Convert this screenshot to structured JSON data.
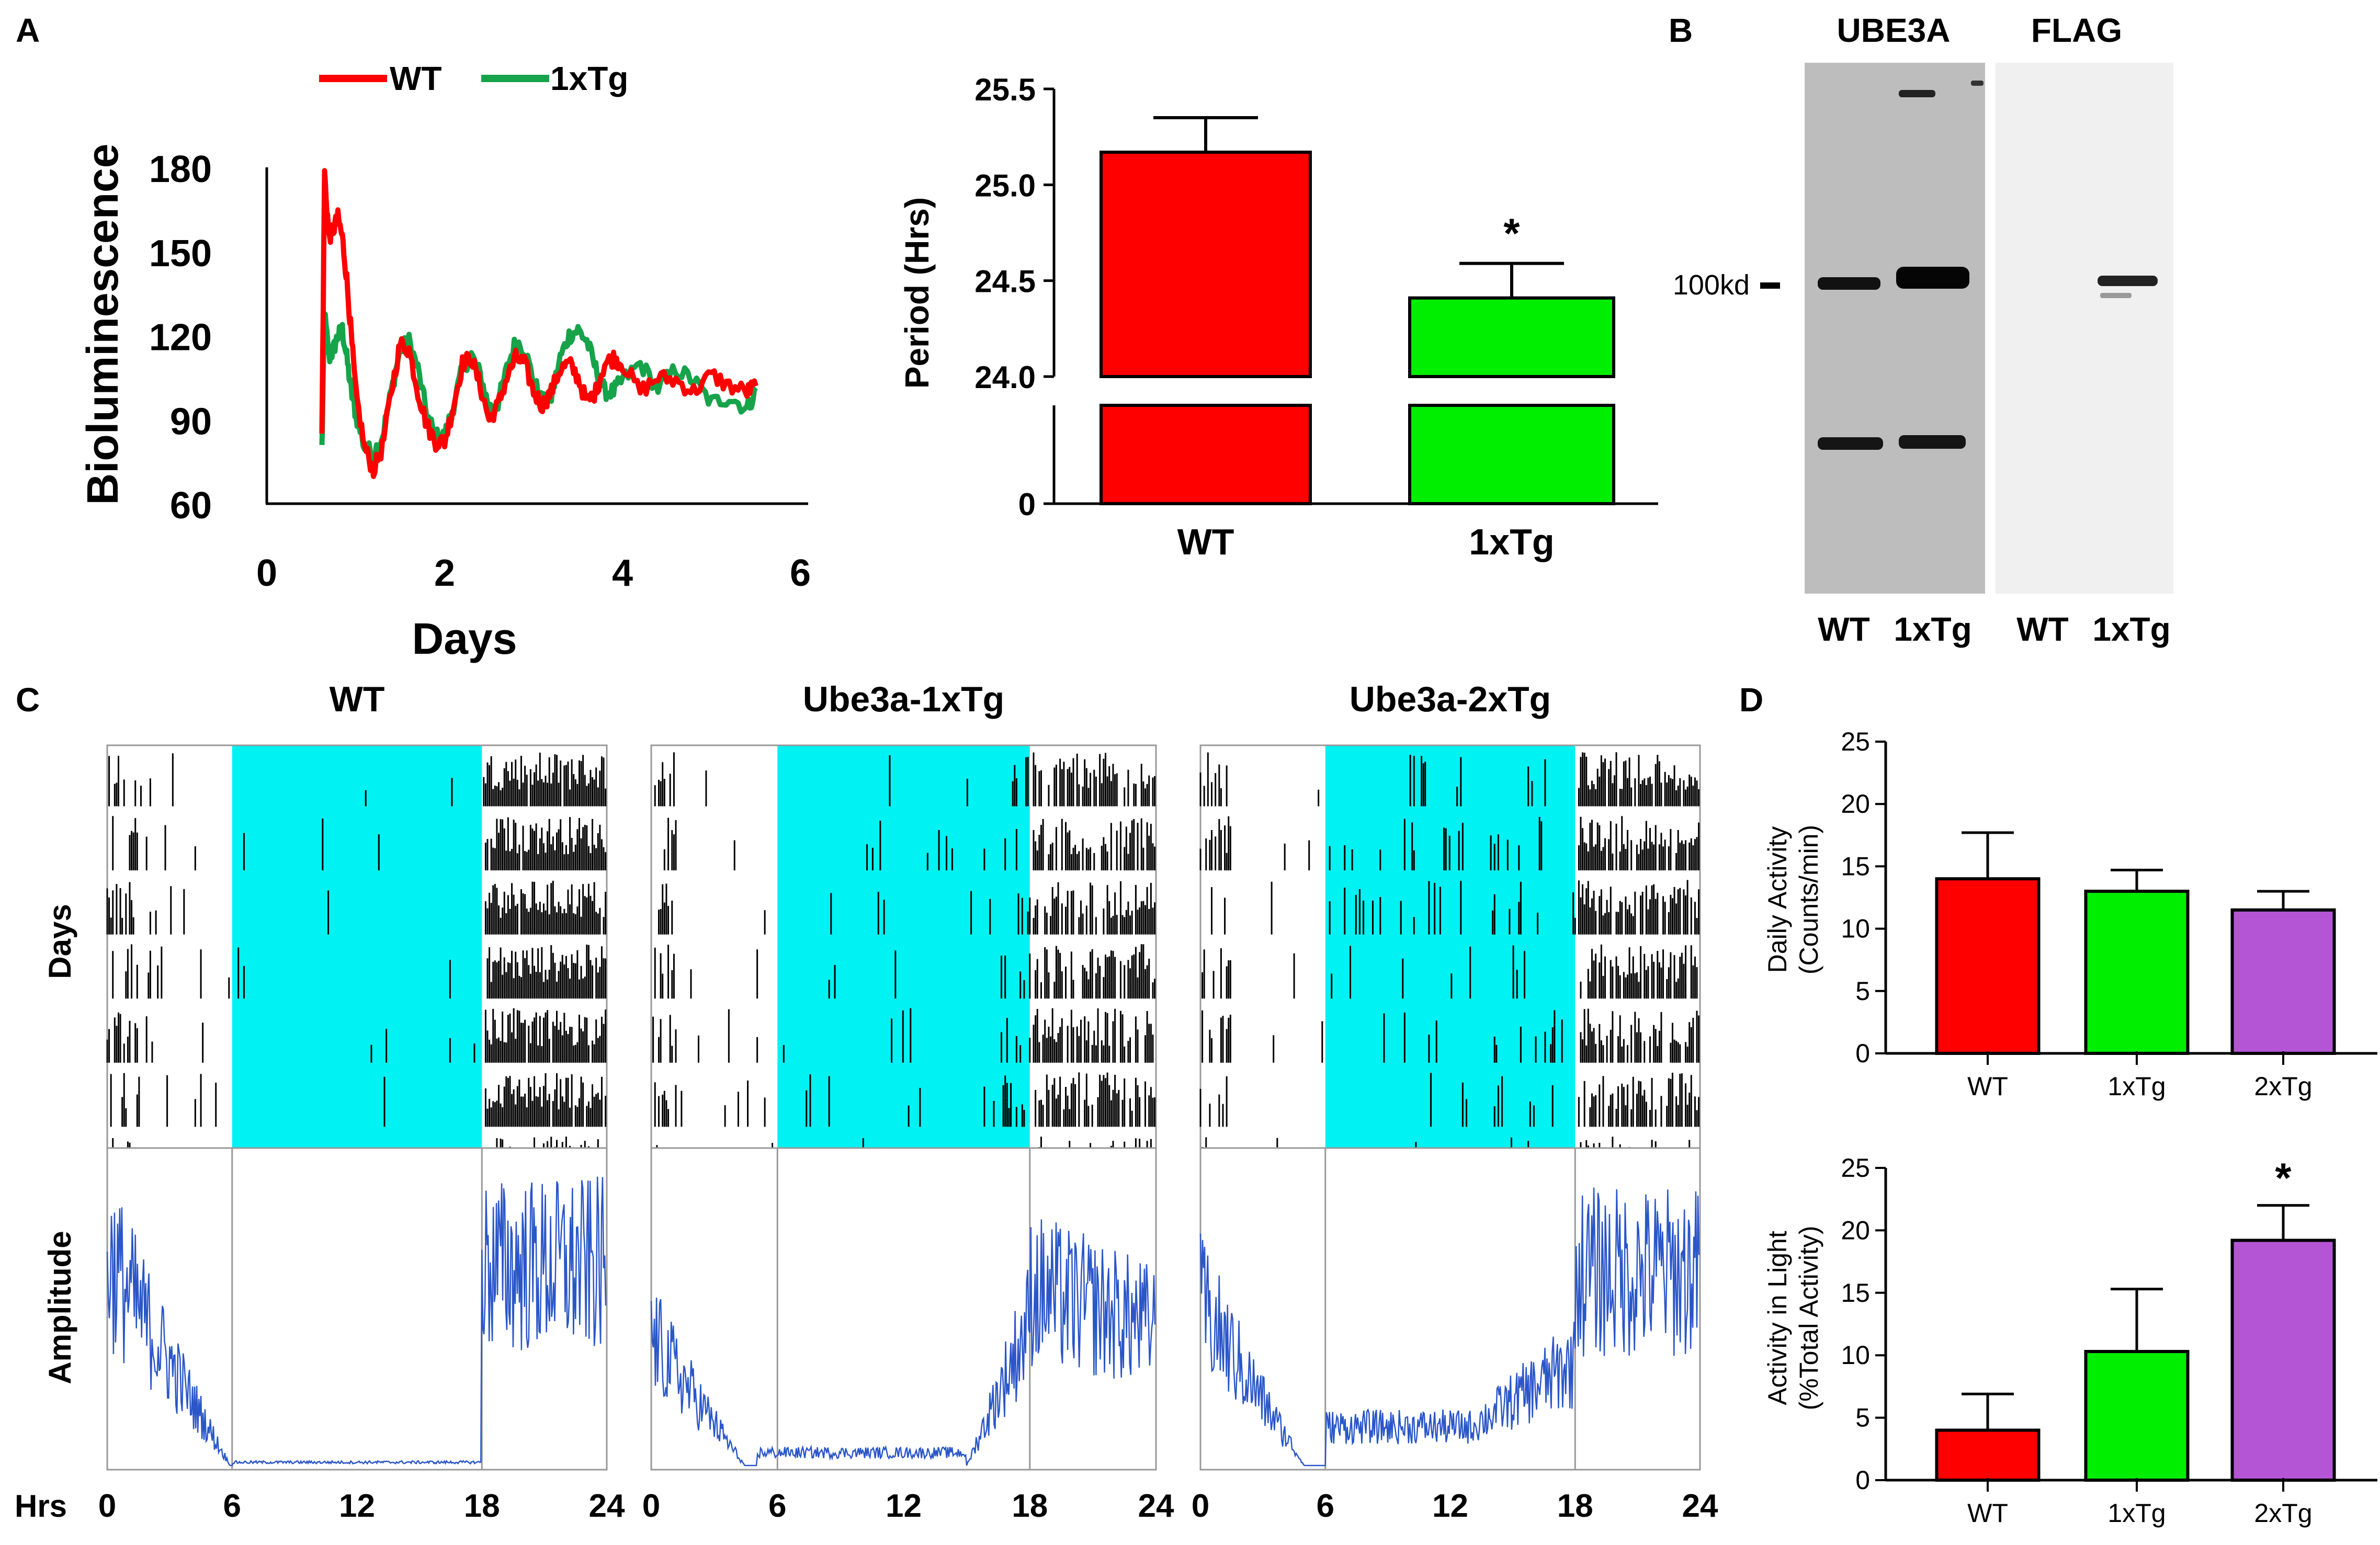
{
  "panel_labels": {
    "a": "A",
    "b": "B",
    "c": "C",
    "d": "D"
  },
  "colors": {
    "wt": "#ff0000",
    "tg1": "#00ee00",
    "tg1_line": "#16a34a",
    "tg2": "#b455d6",
    "dark_phase": "#00f2f2",
    "amplitude_trace": "#2a56c8",
    "axis": "#000000"
  },
  "chart_data": [
    {
      "id": "A1",
      "type": "line",
      "title": "",
      "xlabel": "Days",
      "ylabel": "Bioluminescence",
      "xlim": [
        0,
        6
      ],
      "ylim": [
        60,
        180
      ],
      "xticks": [
        "0",
        "2",
        "4",
        "6"
      ],
      "yticks": [
        "60",
        "90",
        "120",
        "150",
        "180"
      ],
      "legend": {
        "placement": "top",
        "entries": [
          "WT",
          "1xTg"
        ]
      },
      "series": [
        {
          "name": "WT",
          "color_key": "wt",
          "x": [
            0.62,
            0.65,
            0.7,
            0.75,
            0.8,
            0.85,
            0.9,
            0.95,
            1.0,
            1.1,
            1.2,
            1.3,
            1.4,
            1.5,
            1.6,
            1.7,
            1.8,
            1.9,
            2.0,
            2.1,
            2.2,
            2.3,
            2.4,
            2.5,
            2.6,
            2.7,
            2.8,
            2.9,
            3.0,
            3.1,
            3.2,
            3.3,
            3.4,
            3.5,
            3.6,
            3.7,
            3.8,
            3.9,
            4.0,
            4.2,
            4.4,
            4.6,
            4.8,
            5.0,
            5.2,
            5.4,
            5.5
          ],
          "y": [
            85,
            178,
            155,
            158,
            162,
            155,
            140,
            120,
            100,
            80,
            72,
            80,
            100,
            117,
            115,
            100,
            88,
            82,
            82,
            95,
            110,
            112,
            102,
            90,
            95,
            105,
            112,
            110,
            100,
            95,
            100,
            108,
            110,
            105,
            96,
            100,
            110,
            112,
            110,
            100,
            105,
            104,
            100,
            106,
            102,
            100,
            102
          ]
        },
        {
          "name": "1xTg",
          "color_key": "tg1_line",
          "x": [
            0.62,
            0.65,
            0.7,
            0.75,
            0.8,
            0.85,
            0.9,
            0.95,
            1.0,
            1.1,
            1.2,
            1.3,
            1.4,
            1.5,
            1.6,
            1.7,
            1.8,
            1.9,
            2.0,
            2.1,
            2.2,
            2.3,
            2.4,
            2.5,
            2.6,
            2.7,
            2.8,
            2.9,
            3.0,
            3.1,
            3.2,
            3.3,
            3.4,
            3.5,
            3.6,
            3.7,
            3.8,
            3.9,
            4.0,
            4.2,
            4.4,
            4.6,
            4.8,
            5.0,
            5.2,
            5.4,
            5.5
          ],
          "y": [
            80,
            128,
            112,
            115,
            120,
            122,
            112,
            100,
            92,
            80,
            78,
            84,
            100,
            115,
            118,
            108,
            92,
            84,
            84,
            95,
            108,
            113,
            106,
            94,
            96,
            108,
            118,
            115,
            104,
            96,
            98,
            112,
            120,
            122,
            118,
            108,
            100,
            100,
            104,
            110,
            101,
            108,
            104,
            96,
            98,
            94,
            100
          ]
        }
      ]
    },
    {
      "id": "A2",
      "type": "bar",
      "ylabel": "Period (Hrs)",
      "categories": [
        "WT",
        "1xTg"
      ],
      "values": [
        25.17,
        24.41
      ],
      "errors": [
        0.18,
        0.18
      ],
      "upper_ylim": [
        24.0,
        25.5
      ],
      "yticks": [
        "24.0",
        "24.5",
        "25.0",
        "25.5"
      ],
      "broken_axis_lower_tick": "0",
      "annotations": [
        {
          "category": "1xTg",
          "text": "*"
        }
      ]
    },
    {
      "id": "C",
      "type": "heatmap",
      "description": "actogram",
      "row_label": "Days",
      "amplitude_label": "Amplitude",
      "x_axis_prefix": "Hrs",
      "xticks": [
        "0",
        "6",
        "12",
        "18",
        "24"
      ],
      "dark_phase_hours": [
        6,
        18
      ],
      "panels": [
        {
          "title": "WT",
          "n_days": 7,
          "label_x_prefix": true
        },
        {
          "title": "Ube3a-1xTg",
          "n_days": 7,
          "label_x_prefix": false
        },
        {
          "title": "Ube3a-2xTg",
          "n_days": 7,
          "label_x_prefix": false
        }
      ]
    },
    {
      "id": "D1",
      "type": "bar",
      "ylabel_line1": "Daily Activity",
      "ylabel_line2": "(Counts/min)",
      "categories": [
        "WT",
        "1xTg",
        "2xTg"
      ],
      "values": [
        14.0,
        13.0,
        11.5
      ],
      "errors": [
        3.7,
        1.7,
        1.5
      ],
      "ylim": [
        0,
        25
      ],
      "yticks": [
        "0",
        "5",
        "10",
        "15",
        "20",
        "25"
      ]
    },
    {
      "id": "D2",
      "type": "bar",
      "ylabel_line1": "Activity in Light",
      "ylabel_line2": "(%Total Activity)",
      "categories": [
        "WT",
        "1xTg",
        "2xTg"
      ],
      "values": [
        4.0,
        10.3,
        19.2
      ],
      "errors": [
        2.9,
        5.0,
        2.8
      ],
      "ylim": [
        0,
        25
      ],
      "yticks": [
        "0",
        "5",
        "10",
        "15",
        "20",
        "25"
      ],
      "annotations": [
        {
          "category": "2xTg",
          "text": "*"
        }
      ]
    }
  ],
  "western_blot": {
    "headers": [
      "UBE3A",
      "FLAG"
    ],
    "marker_label": "100kd",
    "lane_labels": [
      "WT",
      "1xTg",
      "WT",
      "1xTg"
    ]
  }
}
